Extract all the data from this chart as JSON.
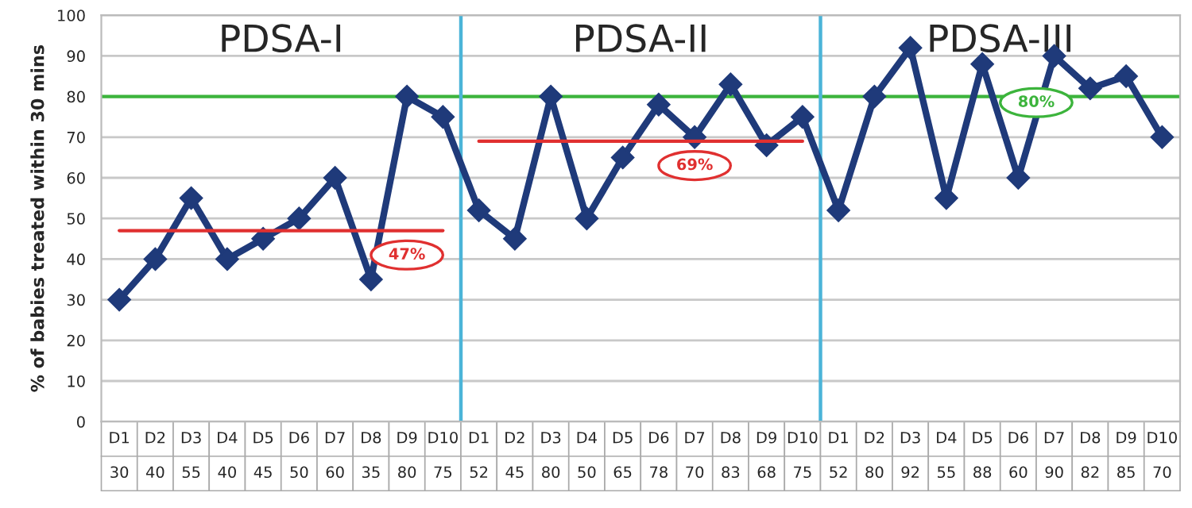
{
  "chart_data": {
    "type": "line",
    "ylabel": "% of babies treated within 30 mins",
    "categories": [
      "D1",
      "D2",
      "D3",
      "D4",
      "D5",
      "D6",
      "D7",
      "D8",
      "D9",
      "D10",
      "D1",
      "D2",
      "D3",
      "D4",
      "D5",
      "D6",
      "D7",
      "D8",
      "D9",
      "D10",
      "D1",
      "D2",
      "D3",
      "D4",
      "D5",
      "D6",
      "D7",
      "D8",
      "D9",
      "D10"
    ],
    "series": [
      {
        "color": "#1f3a7a",
        "marker": "diamond",
        "values": [
          30,
          40,
          55,
          40,
          45,
          50,
          60,
          35,
          80,
          75,
          52,
          45,
          80,
          50,
          65,
          78,
          70,
          83,
          68,
          75,
          52,
          80,
          92,
          55,
          88,
          60,
          90,
          82,
          85,
          70
        ],
        "value_labels": [
          "30",
          "40",
          "55",
          "40",
          "45",
          "50",
          "60",
          "35",
          "80",
          "75",
          "52",
          "45",
          "80",
          "50",
          "65",
          "78",
          "70",
          "83",
          "68",
          "75",
          "52",
          "80",
          "92",
          "55",
          "88",
          "60",
          "90",
          "82",
          "85",
          "70"
        ]
      },
      {
        "color": "#e03030",
        "marker": "none",
        "values": [
          47,
          47,
          47,
          47,
          47,
          47,
          47,
          47,
          47,
          47,
          null,
          null,
          null,
          null,
          null,
          null,
          null,
          null,
          null,
          null,
          null,
          null,
          null,
          null,
          null,
          null,
          null,
          null,
          null,
          null
        ],
        "value_labels": [
          null,
          null,
          null,
          null,
          null,
          null,
          null,
          null,
          "47%",
          null,
          null,
          null,
          null,
          null,
          null,
          null,
          null,
          null,
          null,
          null,
          null,
          null,
          null,
          null,
          null,
          null,
          null,
          null,
          null,
          null
        ]
      },
      {
        "color": "#e03030",
        "marker": "none",
        "values": [
          null,
          null,
          null,
          null,
          null,
          null,
          null,
          null,
          null,
          null,
          69,
          69,
          69,
          69,
          69,
          69,
          69,
          69,
          69,
          69,
          null,
          null,
          null,
          null,
          null,
          null,
          null,
          null,
          null,
          null
        ],
        "value_labels": [
          null,
          null,
          null,
          null,
          null,
          null,
          null,
          null,
          null,
          null,
          null,
          null,
          null,
          null,
          null,
          null,
          "69%",
          null,
          null,
          null,
          null,
          null,
          null,
          null,
          null,
          null,
          null,
          null,
          null,
          null
        ]
      }
    ],
    "ref_lines": [
      {
        "axis": "y",
        "value": 80,
        "label": "80%",
        "color": "#3cb43c"
      }
    ],
    "annotations": [
      "PDSA-I",
      "PDSA-II",
      "PDSA-III"
    ],
    "ylim": [
      0,
      100
    ],
    "yticks": [
      0,
      10,
      20,
      30,
      40,
      50,
      60,
      70,
      80,
      90,
      100
    ],
    "grid": "y"
  }
}
